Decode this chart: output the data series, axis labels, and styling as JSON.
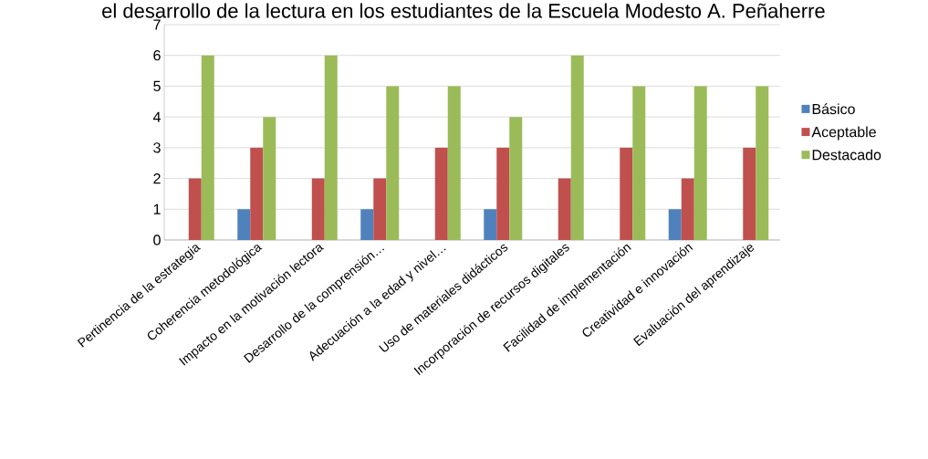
{
  "chart_data": {
    "type": "bar",
    "title": "el desarrollo de la lectura en los estudiantes de la Escuela Modesto A. Peñaherre",
    "categories": [
      "Pertinencia de la estrategia",
      "Coherencia metodológica",
      "Impacto en la motivación lectora",
      "Desarrollo de la comprensión…",
      "Adecuación a la edad y nivel…",
      "Uso de materiales didácticos",
      "Incorporación de recursos digitales",
      "Facilidad de implementación",
      "Creatividad e innovación",
      "Evaluación del aprendizaje"
    ],
    "series": [
      {
        "name": "Básico",
        "color": "#4f81bd",
        "values": [
          0,
          1,
          0,
          1,
          0,
          1,
          0,
          0,
          1,
          0
        ]
      },
      {
        "name": "Aceptable",
        "color": "#c0504d",
        "values": [
          2,
          3,
          2,
          2,
          3,
          3,
          2,
          3,
          2,
          3
        ]
      },
      {
        "name": "Destacado",
        "color": "#9bbb59",
        "values": [
          6,
          4,
          6,
          5,
          5,
          4,
          6,
          5,
          5,
          5
        ]
      }
    ],
    "ylim": [
      0,
      7
    ],
    "yticks": [
      0,
      1,
      2,
      3,
      4,
      5,
      6,
      7
    ],
    "grid": "y",
    "legend": "right"
  }
}
